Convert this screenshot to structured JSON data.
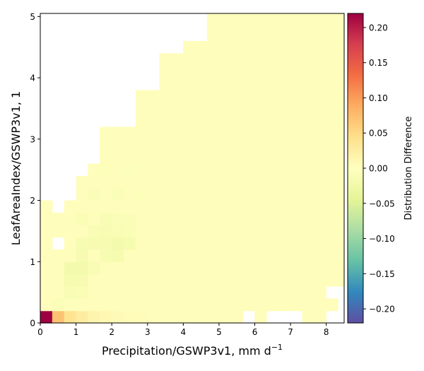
{
  "chart_data": {
    "type": "heatmap",
    "xlabel": "Precipitation/GSWP3v1,  mm d",
    "xlabel_sup": "−1",
    "ylabel": "LeafAreaIndex/GSWP3v1,  1",
    "colorbar_label": "Distribution Difference",
    "colormap": "Spectral_r",
    "xlim": [
      0,
      8.5
    ],
    "ylim": [
      0,
      5.05
    ],
    "vmin": -0.22,
    "vmax": 0.22,
    "bin_width_x": 0.333,
    "bin_height_y": 0.2,
    "x_ticks": [
      "0",
      "1",
      "2",
      "3",
      "4",
      "5",
      "6",
      "7",
      "8"
    ],
    "y_ticks": [
      "0",
      "1",
      "2",
      "3",
      "4",
      "5"
    ],
    "colorbar_ticks": [
      "0.20",
      "0.15",
      "0.10",
      "0.05",
      "0.00",
      "−0.05",
      "−0.10",
      "−0.15",
      "−0.20"
    ],
    "colorbar_tick_values": [
      0.2,
      0.15,
      0.1,
      0.05,
      0.0,
      -0.05,
      -0.1,
      -0.15,
      -0.2
    ],
    "populated_column_top_y": [
      2.0,
      1.8,
      2.0,
      2.4,
      2.6,
      3.2,
      3.2,
      3.2,
      3.8,
      3.8,
      4.4,
      4.4,
      4.6,
      4.6,
      5.05,
      5.05,
      5.05,
      5.05,
      5.05,
      5.05,
      5.05,
      5.05,
      5.05,
      5.05,
      5.05,
      5.05
    ],
    "empty_cells": [
      [
        1,
        6
      ],
      [
        3,
        14
      ],
      [
        3,
        15
      ],
      [
        3,
        16
      ],
      [
        3,
        17
      ],
      [
        3,
        18
      ],
      [
        3,
        19
      ],
      [
        4,
        15
      ],
      [
        17,
        0
      ],
      [
        19,
        0
      ],
      [
        20,
        0
      ],
      [
        21,
        0
      ],
      [
        24,
        0
      ],
      [
        25,
        0
      ],
      [
        25,
        1
      ],
      [
        24,
        2
      ],
      [
        25,
        2
      ]
    ],
    "highlight_cells": [
      {
        "col": 0,
        "row": 0,
        "value": 0.22
      },
      {
        "col": 1,
        "row": 0,
        "value": 0.07
      },
      {
        "col": 2,
        "row": 0,
        "value": 0.04
      },
      {
        "col": 3,
        "row": 0,
        "value": 0.025
      },
      {
        "col": 4,
        "row": 0,
        "value": 0.015
      },
      {
        "col": 5,
        "row": 0,
        "value": 0.01
      },
      {
        "col": 6,
        "row": 0,
        "value": 0.008
      },
      {
        "col": 7,
        "row": 0,
        "value": 0.006
      },
      {
        "col": 8,
        "row": 0,
        "value": 0.005
      },
      {
        "col": 1,
        "row": 1,
        "value": -0.008
      },
      {
        "col": 2,
        "row": 1,
        "value": -0.004
      },
      {
        "col": 2,
        "row": 2,
        "value": -0.012
      },
      {
        "col": 3,
        "row": 2,
        "value": -0.01
      },
      {
        "col": 2,
        "row": 3,
        "value": -0.018
      },
      {
        "col": 3,
        "row": 3,
        "value": -0.016
      },
      {
        "col": 2,
        "row": 4,
        "value": -0.02
      },
      {
        "col": 3,
        "row": 4,
        "value": -0.02
      },
      {
        "col": 4,
        "row": 4,
        "value": -0.012
      },
      {
        "col": 3,
        "row": 5,
        "value": -0.016
      },
      {
        "col": 5,
        "row": 5,
        "value": -0.014
      },
      {
        "col": 6,
        "row": 5,
        "value": -0.018
      },
      {
        "col": 3,
        "row": 6,
        "value": -0.014
      },
      {
        "col": 4,
        "row": 6,
        "value": -0.016
      },
      {
        "col": 5,
        "row": 6,
        "value": -0.016
      },
      {
        "col": 6,
        "row": 6,
        "value": -0.02
      },
      {
        "col": 7,
        "row": 6,
        "value": -0.018
      },
      {
        "col": 4,
        "row": 7,
        "value": -0.012
      },
      {
        "col": 5,
        "row": 7,
        "value": -0.014
      },
      {
        "col": 6,
        "row": 7,
        "value": -0.012
      },
      {
        "col": 7,
        "row": 7,
        "value": -0.01
      },
      {
        "col": 3,
        "row": 8,
        "value": -0.01
      },
      {
        "col": 5,
        "row": 8,
        "value": -0.012
      },
      {
        "col": 6,
        "row": 8,
        "value": -0.01
      },
      {
        "col": 7,
        "row": 8,
        "value": -0.008
      },
      {
        "col": 4,
        "row": 10,
        "value": -0.008
      },
      {
        "col": 6,
        "row": 10,
        "value": -0.008
      },
      {
        "col": 8,
        "row": 10,
        "value": -0.006
      },
      {
        "col": 5,
        "row": 12,
        "value": -0.006
      },
      {
        "col": 7,
        "row": 12,
        "value": -0.005
      }
    ],
    "background_value": 0.003,
    "grid": false
  }
}
